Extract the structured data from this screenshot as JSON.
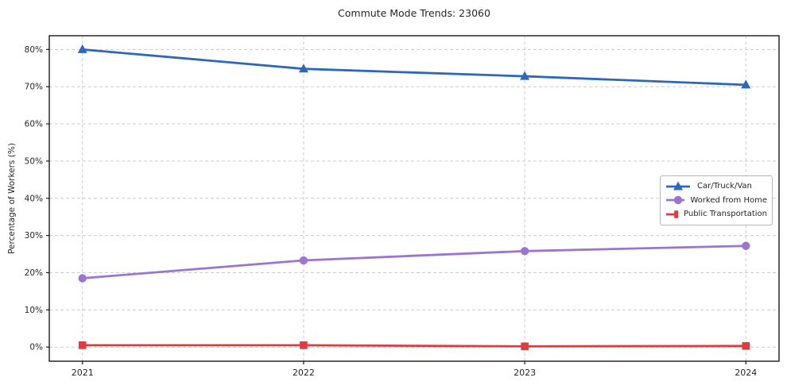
{
  "chart_data": {
    "type": "line",
    "title": "Commute Mode Trends: 23060",
    "xlabel": "",
    "ylabel": "Percentage of Workers (%)",
    "x": [
      2021,
      2022,
      2023,
      2024
    ],
    "x_tick_labels": [
      "2021",
      "2022",
      "2023",
      "2024"
    ],
    "y_ticks": [
      0,
      10,
      20,
      30,
      40,
      50,
      60,
      70,
      80
    ],
    "y_tick_suffix": "%",
    "xlim": [
      2020.85,
      2024.15
    ],
    "ylim": [
      -3.8,
      83.7
    ],
    "grid": true,
    "grid_style": "dashed",
    "legend_position": "center-right",
    "series": [
      {
        "name": "Car/Truck/Van",
        "color": "#2d68be",
        "marker": "triangle",
        "values": [
          80.0,
          74.8,
          72.8,
          70.5
        ]
      },
      {
        "name": "Worked from Home",
        "color": "#9b74d4",
        "marker": "circle",
        "values": [
          18.5,
          23.3,
          25.8,
          27.2
        ]
      },
      {
        "name": "Public Transportation",
        "color": "#e23b3e",
        "marker": "square",
        "values": [
          0.5,
          0.5,
          0.2,
          0.3
        ]
      }
    ],
    "colors": {
      "grid": "#cccccc",
      "spine": "#1a1a1a",
      "text": "#262626",
      "background": "#ffffff"
    }
  }
}
